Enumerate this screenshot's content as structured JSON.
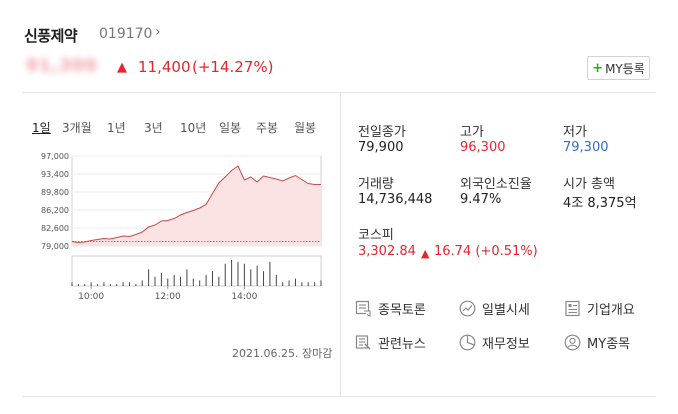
{
  "header": {
    "stock_name": "신풍제약",
    "stock_code": "019170",
    "code_arrow": "›",
    "price": "91,300",
    "change_arrow": "▲",
    "change": "11,400",
    "change_pct": "(+14.27%)",
    "my_button_plus": "+",
    "my_button_label": "MY등록"
  },
  "period_tabs": [
    {
      "label": "1일",
      "active": true
    },
    {
      "label": "3개월",
      "active": false
    },
    {
      "label": "1년",
      "active": false
    },
    {
      "label": "3년",
      "active": false
    },
    {
      "label": "10년",
      "active": false
    },
    {
      "label": "일봉",
      "active": false
    },
    {
      "label": "주봉",
      "active": false
    },
    {
      "label": "월봉",
      "active": false
    }
  ],
  "chart_data": {
    "type": "area",
    "y_ticks": [
      "97,000",
      "93,400",
      "89,800",
      "86,200",
      "82,600",
      "79,000"
    ],
    "x_ticks": [
      "10:00",
      "12:00",
      "14:00"
    ],
    "ylim": [
      79000,
      97000
    ],
    "reference_line": 79900,
    "series": [
      {
        "x_minutes": [
          0,
          10,
          20,
          30,
          40,
          50,
          60,
          70,
          80,
          90,
          100,
          110,
          120,
          130,
          140,
          150,
          160,
          170,
          180,
          190,
          200,
          210,
          220,
          230,
          240,
          250,
          260,
          270,
          280,
          290,
          300,
          310,
          320,
          330,
          340,
          350,
          360,
          370,
          380,
          390
        ],
        "values": [
          79900,
          79700,
          79800,
          80100,
          80300,
          80500,
          80400,
          80700,
          81000,
          80900,
          81300,
          81800,
          82800,
          83200,
          84000,
          84100,
          84500,
          85200,
          85700,
          86100,
          86600,
          87300,
          89500,
          91600,
          92800,
          94100,
          95000,
          92200,
          92800,
          91800,
          93000,
          92700,
          92400,
          92000,
          92600,
          93100,
          92300,
          91500,
          91300,
          91300
        ]
      }
    ],
    "volume": [
      2,
      1,
      1,
      2,
      1,
      2,
      1,
      1,
      2,
      2,
      1,
      3,
      9,
      5,
      7,
      4,
      6,
      5,
      9,
      4,
      3,
      6,
      8,
      5,
      12,
      14,
      13,
      12,
      9,
      11,
      8,
      13,
      6,
      2,
      3,
      4,
      2,
      2,
      2,
      3
    ]
  },
  "chart_date": "2021.06.25. 장마감",
  "stats": [
    {
      "label": "전일종가",
      "value": "79,900",
      "tone": "normal"
    },
    {
      "label": "고가",
      "value": "96,300",
      "tone": "red"
    },
    {
      "label": "저가",
      "value": "79,300",
      "tone": "blue"
    },
    {
      "label": "거래량",
      "value": "14,736,448",
      "tone": "normal"
    },
    {
      "label": "외국인소진율",
      "value": "9.47%",
      "tone": "normal"
    },
    {
      "label": "시가 총액",
      "value": "4조 8,375억",
      "tone": "normal"
    }
  ],
  "kospi": {
    "label": "코스피",
    "value": "3,302.84",
    "arrow": "▲",
    "change": "16.74 (+0.51%)"
  },
  "links": [
    {
      "label": "종목토론",
      "icon": "discussion-icon"
    },
    {
      "label": "일별시세",
      "icon": "trend-chart-icon"
    },
    {
      "label": "기업개요",
      "icon": "company-doc-icon"
    },
    {
      "label": "관련뉴스",
      "icon": "news-icon"
    },
    {
      "label": "재무정보",
      "icon": "pie-chart-icon"
    },
    {
      "label": "MY종목",
      "icon": "user-icon"
    }
  ],
  "colors": {
    "up": "#e8252c",
    "down": "#2c6fd1",
    "chart_line": "#c84a4a",
    "chart_fill": "#fbe3e3",
    "my_plus": "#1bb200"
  }
}
